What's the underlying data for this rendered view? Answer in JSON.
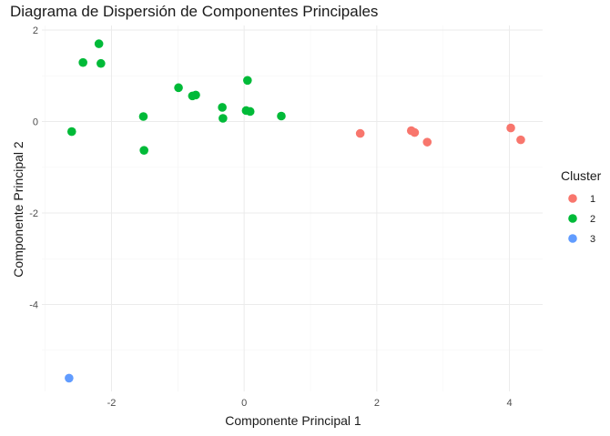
{
  "chart_data": {
    "type": "scatter",
    "title": "Diagrama de Dispersión de Componentes Principales",
    "xlabel": "Componente Principal 1",
    "ylabel": "Componente Principal 2",
    "xlim": [
      -3.05,
      4.5
    ],
    "ylim": [
      -5.9,
      2.1
    ],
    "xticks": [
      -2,
      0,
      2,
      4
    ],
    "yticks": [
      -4,
      -2,
      0,
      2
    ],
    "xtick_labels": [
      "-2",
      "0",
      "2",
      "4"
    ],
    "ytick_labels": [
      "-4",
      "-2",
      "0",
      "2"
    ],
    "grid": true,
    "legend": {
      "title": "Cluster",
      "position": "right"
    },
    "series": [
      {
        "name": "1",
        "color": "#F8766D",
        "points": [
          [
            1.75,
            -0.26
          ],
          [
            2.52,
            -0.2
          ],
          [
            2.57,
            -0.24
          ],
          [
            2.76,
            -0.45
          ],
          [
            4.02,
            -0.14
          ],
          [
            4.17,
            -0.4
          ]
        ]
      },
      {
        "name": "2",
        "color": "#00BA38",
        "points": [
          [
            -2.6,
            -0.22
          ],
          [
            -2.43,
            1.29
          ],
          [
            -2.19,
            1.7
          ],
          [
            -2.16,
            1.27
          ],
          [
            -1.52,
            0.11
          ],
          [
            -1.51,
            -0.63
          ],
          [
            -0.99,
            0.74
          ],
          [
            -0.78,
            0.56
          ],
          [
            -0.73,
            0.58
          ],
          [
            -0.33,
            0.31
          ],
          [
            -0.32,
            0.07
          ],
          [
            0.03,
            0.24
          ],
          [
            0.05,
            0.9
          ],
          [
            0.09,
            0.22
          ],
          [
            0.56,
            0.12
          ]
        ]
      },
      {
        "name": "3",
        "color": "#619CFF",
        "points": [
          [
            -2.64,
            -5.61
          ]
        ]
      }
    ]
  }
}
